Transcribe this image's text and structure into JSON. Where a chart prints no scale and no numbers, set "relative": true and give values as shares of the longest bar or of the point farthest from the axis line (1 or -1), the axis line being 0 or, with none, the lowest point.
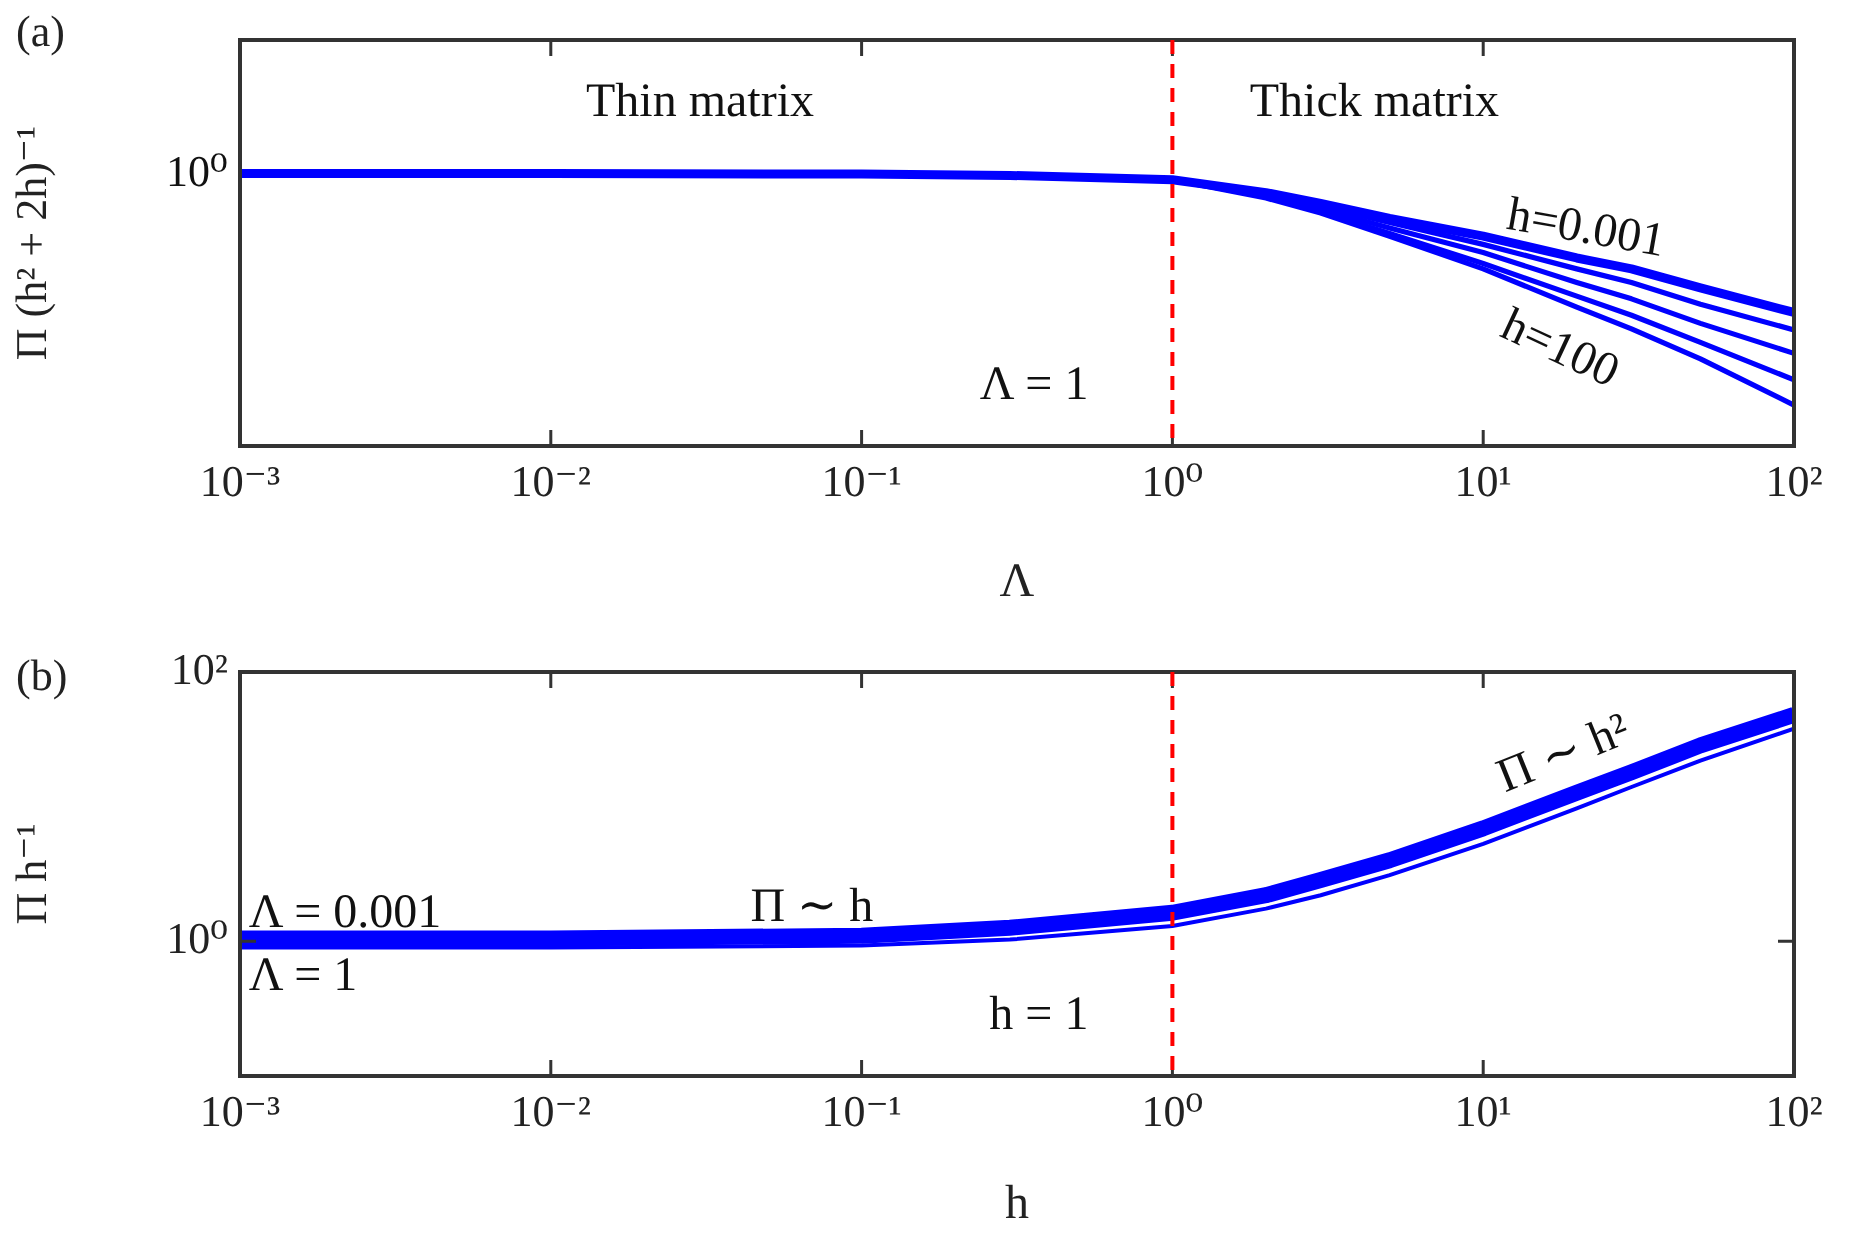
{
  "chart_data": [
    {
      "type": "line",
      "title": "(a)",
      "xlabel": "Λ",
      "ylabel": "Π (h² + 2h)⁻¹",
      "relative": true,
      "log": "x",
      "marker": "none",
      "x": [
        0.001,
        0.01,
        0.1,
        0.3,
        1,
        2,
        3,
        5,
        10,
        20,
        30,
        50,
        100
      ],
      "xlim": [
        0.001,
        100
      ],
      "xticks": [
        {
          "value": 0.001,
          "label": "10⁻³"
        },
        {
          "value": 0.01,
          "label": "10⁻²"
        },
        {
          "value": 0.1,
          "label": "10⁻¹"
        },
        {
          "value": 1,
          "label": "10⁰"
        },
        {
          "value": 10,
          "label": "10¹"
        },
        {
          "value": 100,
          "label": "10²"
        }
      ],
      "series": [
        {
          "color": "#0000ff",
          "values": [
            1,
            1,
            0.998,
            0.993,
            0.977,
            0.93,
            0.89,
            0.835,
            0.77,
            0.69,
            0.65,
            0.58,
            0.49
          ]
        },
        {
          "color": "#0000ff",
          "values": [
            1,
            1,
            0.998,
            0.993,
            0.977,
            0.925,
            0.88,
            0.82,
            0.74,
            0.65,
            0.6,
            0.52,
            0.426
          ]
        },
        {
          "color": "#0000ff",
          "values": [
            1,
            1,
            0.998,
            0.993,
            0.977,
            0.92,
            0.87,
            0.8,
            0.71,
            0.6,
            0.54,
            0.45,
            0.34
          ]
        },
        {
          "color": "#0000ff",
          "values": [
            1,
            1,
            0.998,
            0.993,
            0.977,
            0.915,
            0.86,
            0.78,
            0.67,
            0.55,
            0.48,
            0.38,
            0.243
          ]
        },
        {
          "color": "#0000ff",
          "values": [
            1,
            1,
            0.998,
            0.993,
            0.977,
            0.91,
            0.855,
            0.77,
            0.65,
            0.51,
            0.43,
            0.32,
            0.15
          ]
        }
      ],
      "ref_lines": [
        {
          "axis": "x",
          "value": 1,
          "label": "Λ = 1",
          "color": "#ff0000",
          "line_style": "dashed"
        }
      ],
      "annotations": [
        "Thin matrix",
        "Thick matrix",
        "10⁰",
        "h=0.001",
        "h=100"
      ]
    },
    {
      "type": "line",
      "title": "(b)",
      "xlabel": "h",
      "ylabel": "Π h⁻¹",
      "log": "xy",
      "marker": "none",
      "x": [
        0.001,
        0.01,
        0.1,
        0.3,
        1,
        2,
        3,
        5,
        10,
        20,
        30,
        50,
        100
      ],
      "xlim": [
        0.001,
        100
      ],
      "xticks": [
        {
          "value": 0.001,
          "label": "10⁻³"
        },
        {
          "value": 0.01,
          "label": "10⁻²"
        },
        {
          "value": 0.1,
          "label": "10⁻¹"
        },
        {
          "value": 1,
          "label": "10⁰"
        },
        {
          "value": 10,
          "label": "10¹"
        },
        {
          "value": 100,
          "label": "10²"
        }
      ],
      "ylim": [
        0.1,
        100
      ],
      "yticks": [
        {
          "value": 1,
          "label": "10⁰"
        },
        {
          "value": 100,
          "label": "10²"
        }
      ],
      "series": [
        {
          "color": "#0000ff",
          "values": [
            1.05,
            1.05,
            1.1,
            1.26,
            1.63,
            2.2,
            2.85,
            4.0,
            6.9,
            12.7,
            18,
            28.5,
            48
          ]
        },
        {
          "color": "#0000ff",
          "values": [
            0.9,
            0.9,
            0.93,
            1.03,
            1.3,
            1.75,
            2.2,
            3.1,
            5.3,
            9.7,
            14,
            22,
            38
          ]
        }
      ],
      "ref_lines": [
        {
          "axis": "x",
          "value": 1,
          "label": "h = 1",
          "color": "#ff0000",
          "line_style": "dashed"
        }
      ],
      "annotations": [
        "Λ = 0.001",
        "Λ = 1",
        "Π ∼ h",
        "Π ∼ h²"
      ]
    }
  ]
}
